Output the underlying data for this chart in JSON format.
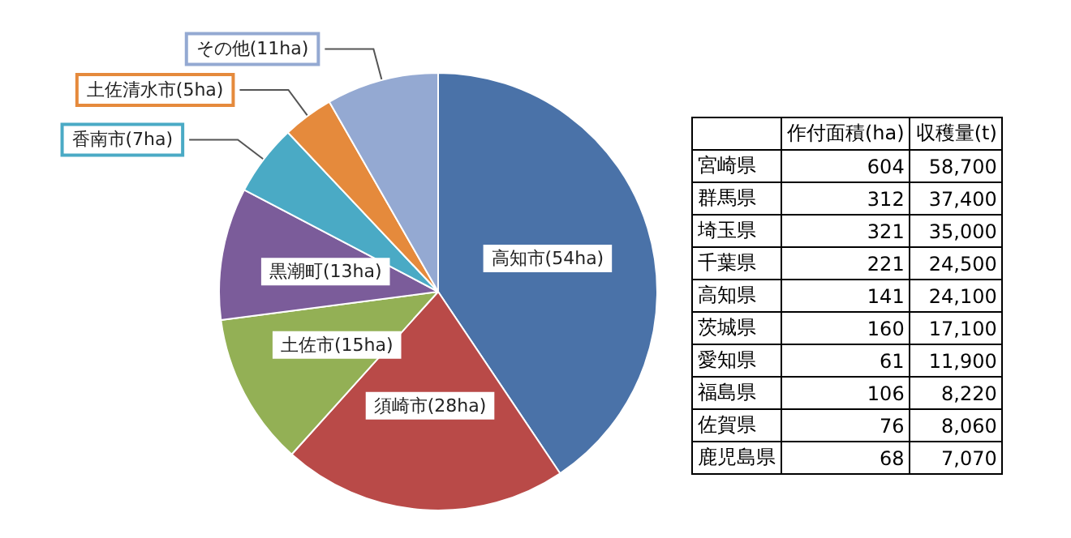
{
  "chart_data": [
    {
      "type": "pie",
      "categories": [
        "高知市",
        "須崎市",
        "土佐市",
        "黒潮町",
        "香南市",
        "土佐清水市",
        "その他"
      ],
      "values": [
        54,
        28,
        15,
        13,
        7,
        5,
        11
      ],
      "colors": [
        "#4a72a8",
        "#b94a48",
        "#93b055",
        "#7b5c9a",
        "#4aaac5",
        "#e58a3c",
        "#94a9d2"
      ],
      "value_labels": [
        "(54ha)",
        "(28ha)",
        "(15ha)",
        "(13ha)",
        "(7ha)",
        "(5ha)",
        "(11ha)"
      ]
    },
    {
      "type": "other",
      "data_labels": true,
      "categories": [
        "宮崎県",
        "群馬県",
        "埼玉県",
        "千葉県",
        "高知県",
        "茨城県",
        "愛知県",
        "福島県",
        "佐賀県",
        "鹿児島県"
      ],
      "series": [
        {
          "name": "作付面積(ha)",
          "values": [
            604,
            312,
            321,
            221,
            141,
            160,
            61,
            106,
            76,
            68
          ]
        },
        {
          "name": "収穫量(t)",
          "values": [
            58700,
            37400,
            35000,
            24500,
            24100,
            17100,
            11900,
            8220,
            8060,
            7070
          ],
          "value_labels": [
            "58,700",
            "37,400",
            "35,000",
            "24,500",
            "24,100",
            "17,100",
            "11,900",
            "8,220",
            "8,060",
            "7,070"
          ]
        }
      ]
    }
  ]
}
